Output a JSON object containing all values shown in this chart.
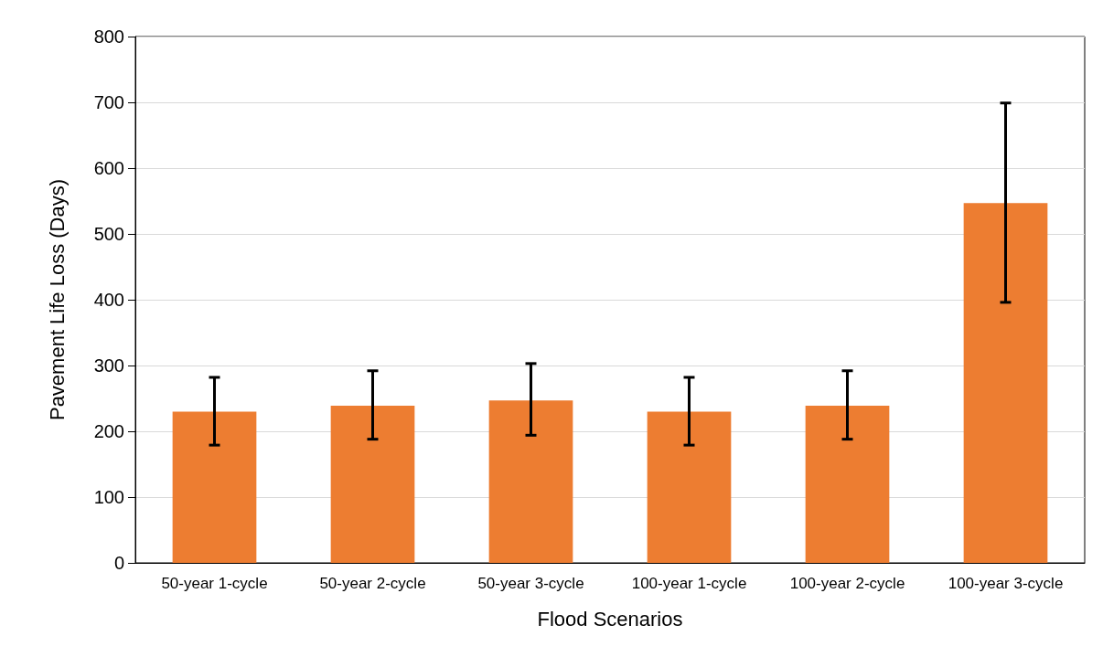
{
  "chart_data": {
    "type": "bar",
    "xlabel": "Flood Scenarios",
    "ylabel": "Pavement Life Loss (Days)",
    "categories": [
      "50-year 1-cycle",
      "50-year 2-cycle",
      "50-year 3-cycle",
      "100-year 1-cycle",
      "100-year 2-cycle",
      "100-year 3-cycle"
    ],
    "values": [
      230,
      239,
      247,
      230,
      239,
      547
    ],
    "errors": [
      [
        179,
        282
      ],
      [
        188,
        292
      ],
      [
        194,
        303
      ],
      [
        179,
        282
      ],
      [
        188,
        292
      ],
      [
        396,
        699
      ]
    ],
    "color": "#ed7d31",
    "ylim": [
      0,
      800
    ],
    "yticks": [
      0,
      100,
      200,
      300,
      400,
      500,
      600,
      700,
      800
    ],
    "grid": "y"
  }
}
